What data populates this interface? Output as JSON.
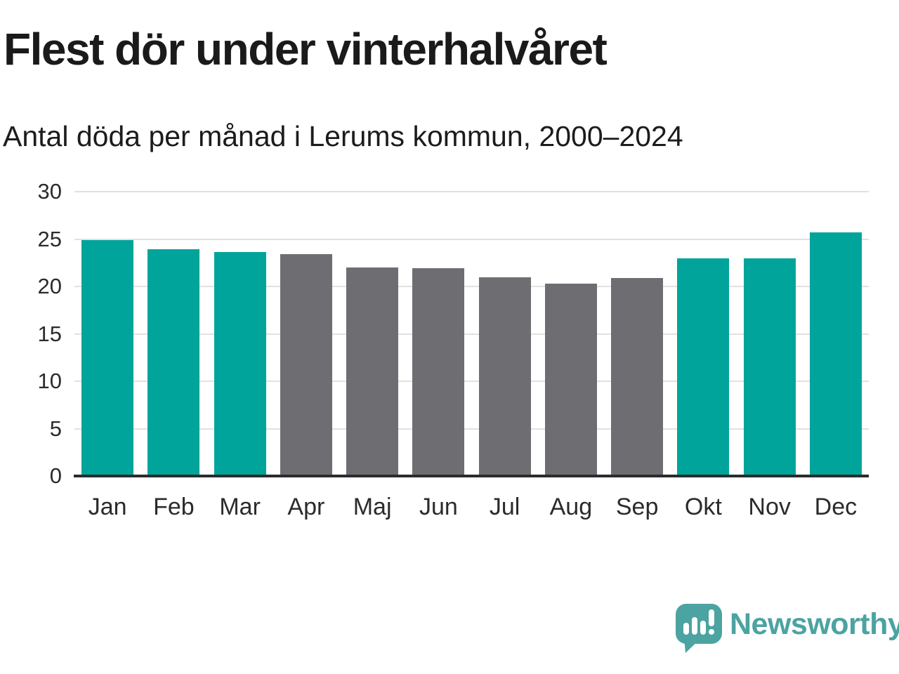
{
  "header": {
    "title": "Flest dör under vinterhalvåret",
    "subtitle": "Antal döda per månad i Lerums kommun, 2000–2024"
  },
  "chart_data": {
    "type": "bar",
    "title": "Flest dör under vinterhalvåret",
    "subtitle": "Antal döda per månad i Lerums kommun, 2000–2024",
    "categories": [
      "Jan",
      "Feb",
      "Mar",
      "Apr",
      "Maj",
      "Jun",
      "Jul",
      "Aug",
      "Sep",
      "Okt",
      "Nov",
      "Dec"
    ],
    "values": [
      24.9,
      23.9,
      23.6,
      23.4,
      22.0,
      21.9,
      21.0,
      20.3,
      20.9,
      23.0,
      23.0,
      25.7
    ],
    "highlighted": [
      true,
      true,
      true,
      false,
      false,
      false,
      false,
      false,
      false,
      true,
      true,
      true
    ],
    "xlabel": "",
    "ylabel": "",
    "ylim": [
      0,
      30
    ],
    "yticks": [
      0,
      5,
      10,
      15,
      20,
      25,
      30
    ],
    "grid": true,
    "legend": "none",
    "colors": {
      "highlight": "#00a49b",
      "muted": "#6d6d72",
      "gridline": "#e1e1e1",
      "axis": "#2c2c2c",
      "tick_text": "#2b2b2b"
    }
  },
  "footer": {
    "brand": "Newsworthy",
    "logo_icon": "bar-chart-speech-bubble-icon",
    "brand_color": "#4ba3a2"
  }
}
